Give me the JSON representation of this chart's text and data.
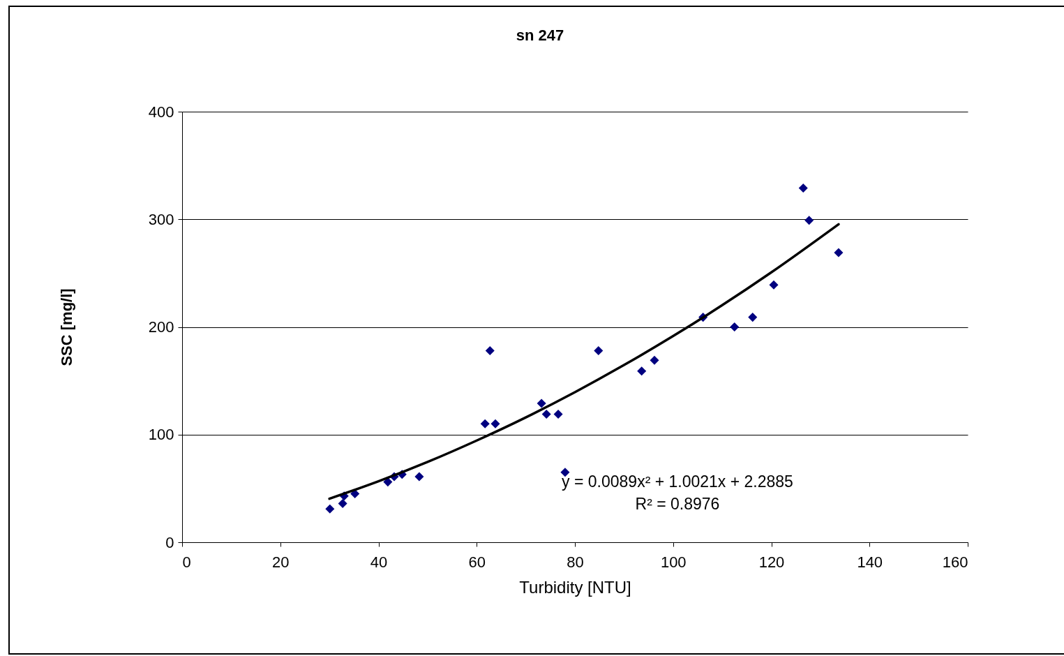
{
  "chart_data": {
    "type": "scatter",
    "title": "sn 247",
    "xlabel": "Turbidity [NTU]",
    "ylabel": "SSC [mg/l]",
    "xlim": [
      0,
      160
    ],
    "xticks": [
      0,
      20,
      40,
      60,
      80,
      100,
      120,
      140,
      160
    ],
    "ylim": [
      0,
      400
    ],
    "yticks": [
      0,
      100,
      200,
      300,
      400
    ],
    "grid": "y",
    "annotations": [
      "y = 0.0089x² + 1.0021x + 2.2885",
      "R² = 0.8976"
    ],
    "series": [
      {
        "marker": "diamond",
        "color": "#000080",
        "x": [
          30.1,
          32.7,
          33,
          35.2,
          41.9,
          43.2,
          44.8,
          48.3,
          61.7,
          63.8,
          62.7,
          73.2,
          74.2,
          76.6,
          78,
          84.8,
          93.6,
          96.2,
          106.1,
          112.5,
          116.2,
          120.5,
          126.5,
          127.7,
          133.7
        ],
        "values": [
          31,
          36,
          43,
          45,
          56,
          61,
          63,
          61,
          110,
          110,
          178,
          129,
          119,
          119,
          65,
          178,
          159,
          169,
          209,
          200,
          209,
          239,
          329,
          299,
          269
        ]
      },
      {
        "type": "line",
        "marker": "none",
        "color": "#000000",
        "line_style": "solid",
        "x": [
          30,
          40,
          50,
          60,
          70,
          80,
          90,
          100,
          110,
          120,
          133.7
        ],
        "values": [
          40.4,
          56.6,
          74.6,
          94.5,
          116,
          139.4,
          164.6,
          191.5,
          220.2,
          250.7,
          295.4
        ]
      }
    ]
  }
}
